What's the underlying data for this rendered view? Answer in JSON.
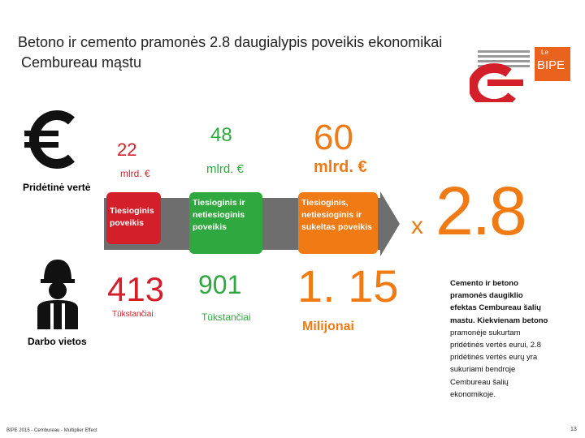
{
  "header": {
    "title_lines": [
      "Betono ir cemento pramonės 2.8 daugialypis poveikis ekonomikai",
      "Cembureau mąstu"
    ],
    "logo_small": "Le",
    "logo": "BIPE"
  },
  "rows": [
    {
      "label": "Pridėtinė vertė"
    },
    {
      "label": "Darbo vietos"
    }
  ],
  "columns": [
    {
      "value_added": "22",
      "value_unit": "mlrd. €",
      "box": [
        "Tiesioginis",
        "poveikis"
      ],
      "jobs": "413",
      "jobs_unit": "Tūkstančiai"
    },
    {
      "value_added": "48",
      "value_unit": "mlrd. €",
      "box": [
        "Tiesioginis ir",
        "netiesioginis",
        "poveikis"
      ],
      "jobs": "901",
      "jobs_unit": "Tūkstančiai"
    },
    {
      "value_added": "60",
      "value_unit": "mlrd. €",
      "box": [
        "Tiesioginis,",
        "netiesioginis ir",
        "sukeltas poveikis"
      ],
      "jobs": "1. 15",
      "jobs_unit": "Milijonai"
    }
  ],
  "multiplier": {
    "prefix": "x",
    "value": "2.8"
  },
  "note": [
    "Cemento ir betono",
    "pramonės daugiklio",
    "efektas Cembureau šalių",
    "mastu. Kiekvienam betono",
    "pramonėje sukurtam",
    "pridėtinės vertės eurui, 2.8",
    "pridėtinės vertės eurų yra",
    "sukuriami bendroje",
    "Cembureau šalių",
    "ekonomikoje."
  ],
  "footer": {
    "source": "BIPE 2015 - Cembureau - Multiplier Effect",
    "page": "13"
  }
}
